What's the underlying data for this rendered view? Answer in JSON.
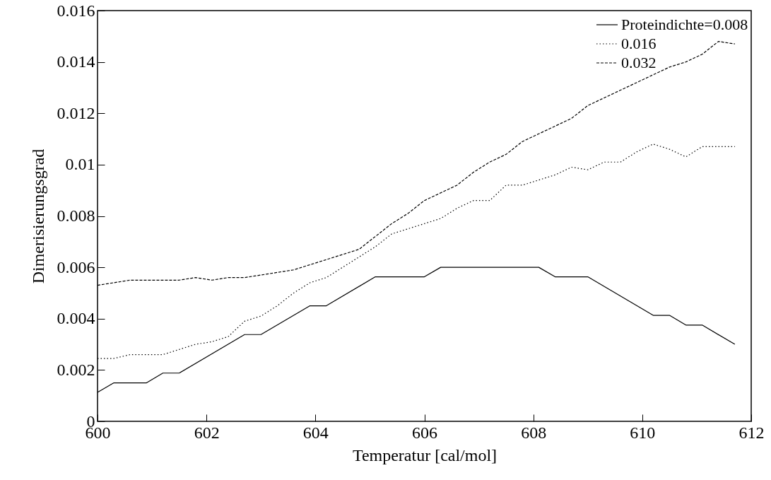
{
  "chart_data": {
    "type": "line",
    "xlabel": "Temperatur [cal/mol]",
    "ylabel": "Dimerisierungsgrad",
    "xlim": [
      600,
      612
    ],
    "xticks": [
      600,
      602,
      604,
      606,
      608,
      610,
      612
    ],
    "ylim": [
      0,
      0.016
    ],
    "yticks": [
      {
        "value": 0,
        "label": "0"
      },
      0.002,
      0.004,
      0.006,
      0.008,
      {
        "value": 0.01,
        "label": "0.01"
      },
      0.012,
      0.014,
      0.016
    ],
    "grid": false,
    "legend": "top right",
    "series": [
      {
        "name": "Proteindichte=0.008",
        "color": "#000000",
        "line_style": "solid",
        "x": [
          600,
          600.3,
          600.9,
          601.2,
          601.5,
          602.7,
          603.0,
          603.9,
          604.2,
          605.1,
          606.0,
          606.3,
          608.1,
          608.4,
          609.0,
          610.2,
          610.5,
          610.8,
          611.1,
          611.7
        ],
        "values": [
          0.00113,
          0.0015,
          0.0015,
          0.00188,
          0.00188,
          0.00338,
          0.00338,
          0.0045,
          0.0045,
          0.00563,
          0.00563,
          0.006,
          0.006,
          0.00563,
          0.00563,
          0.00413,
          0.00413,
          0.00375,
          0.00375,
          0.003
        ]
      },
      {
        "name": "0.016",
        "color": "#000000",
        "line_style": "dotted",
        "x": [
          600,
          600.3,
          600.6,
          601.2,
          601.5,
          601.8,
          602.1,
          602.4,
          602.7,
          603.0,
          603.3,
          603.6,
          603.9,
          604.2,
          604.5,
          604.8,
          605.1,
          605.4,
          605.7,
          606.0,
          606.3,
          606.6,
          606.9,
          607.2,
          607.5,
          607.8,
          608.1,
          608.4,
          608.7,
          609.0,
          609.3,
          609.6,
          609.9,
          610.2,
          610.5,
          610.8,
          611.1,
          611.4,
          611.7
        ],
        "values": [
          0.00245,
          0.00245,
          0.0026,
          0.0026,
          0.0028,
          0.003,
          0.0031,
          0.0033,
          0.0039,
          0.0041,
          0.0045,
          0.005,
          0.0054,
          0.0056,
          0.006,
          0.0064,
          0.0068,
          0.0073,
          0.0075,
          0.0077,
          0.0079,
          0.0083,
          0.0086,
          0.0086,
          0.0092,
          0.0092,
          0.0094,
          0.0096,
          0.0099,
          0.0098,
          0.0101,
          0.0101,
          0.0105,
          0.0108,
          0.0106,
          0.0103,
          0.0107,
          0.0107,
          0.0107
        ]
      },
      {
        "name": "0.032",
        "color": "#000000",
        "line_style": "dashed",
        "x": [
          600,
          600.3,
          600.6,
          601.2,
          601.5,
          601.8,
          602.1,
          602.4,
          602.7,
          603.0,
          603.3,
          603.6,
          603.9,
          604.2,
          604.5,
          604.8,
          605.1,
          605.4,
          605.7,
          606.0,
          606.3,
          606.6,
          606.9,
          607.2,
          607.5,
          607.8,
          608.1,
          608.4,
          608.7,
          609.0,
          609.3,
          609.6,
          609.9,
          610.2,
          610.5,
          610.8,
          611.1,
          611.4,
          611.7
        ],
        "values": [
          0.0053,
          0.0054,
          0.0055,
          0.0055,
          0.0055,
          0.0056,
          0.0055,
          0.0056,
          0.0056,
          0.0057,
          0.0058,
          0.0059,
          0.0061,
          0.0063,
          0.0065,
          0.0067,
          0.0072,
          0.0077,
          0.0081,
          0.0086,
          0.0089,
          0.0092,
          0.0097,
          0.0101,
          0.0104,
          0.0109,
          0.0112,
          0.0115,
          0.0118,
          0.0123,
          0.0126,
          0.0129,
          0.0132,
          0.0135,
          0.0138,
          0.014,
          0.0143,
          0.0148,
          0.0147
        ]
      }
    ]
  }
}
